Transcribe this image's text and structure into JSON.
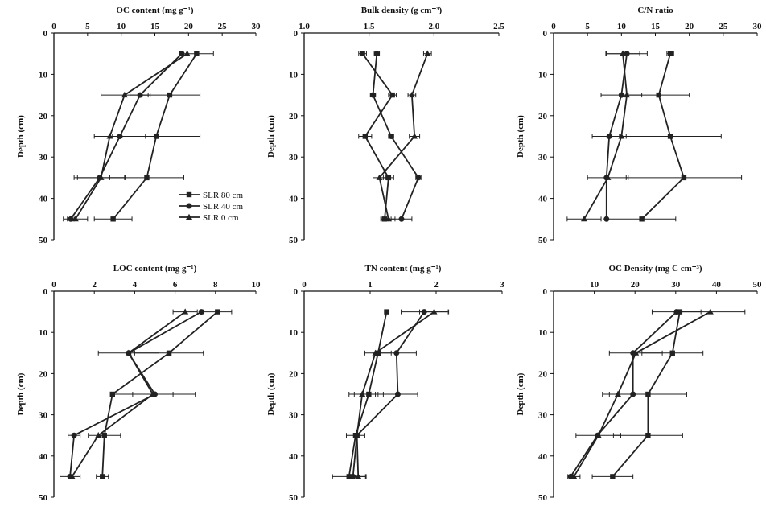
{
  "legend": [
    {
      "series": "SLR 80 cm",
      "marker": "square"
    },
    {
      "series": "SLR 40 cm",
      "marker": "circle"
    },
    {
      "series": "SLR 0 cm",
      "marker": "triangle"
    }
  ],
  "chart_data": [
    {
      "type": "line",
      "title": "OC content (mg g⁻¹)",
      "ylabel": "Depth (cm)",
      "xlim": [
        0,
        30
      ],
      "xticks": [
        0,
        5,
        10,
        15,
        20,
        25,
        30
      ],
      "xtick_labels": [
        "0",
        "5",
        "10",
        "15",
        "20",
        "25",
        "30"
      ],
      "ylim": [
        0,
        50
      ],
      "yticks": [
        0,
        10,
        20,
        30,
        40,
        50
      ],
      "ytick_labels": [
        "0",
        "10",
        "20",
        "30",
        "40",
        "50"
      ],
      "y": [
        5,
        15,
        25,
        35,
        45
      ],
      "series": [
        {
          "name": "SLR 80 cm",
          "marker": "square",
          "x": [
            21.2,
            17.2,
            15.2,
            13.8,
            8.8
          ],
          "err": [
            2.5,
            4.5,
            6.5,
            5.5,
            2.8
          ]
        },
        {
          "name": "SLR 40 cm",
          "marker": "circle",
          "x": [
            19.0,
            12.8,
            9.8,
            6.8,
            2.5
          ],
          "err": [
            0,
            1.5,
            3.8,
            3.8,
            0.5
          ]
        },
        {
          "name": "SLR 0 cm",
          "marker": "triangle",
          "x": [
            19.8,
            10.5,
            8.3,
            7.0,
            3.2
          ],
          "err": [
            0,
            3.5,
            0,
            3.5,
            1.8
          ]
        }
      ]
    },
    {
      "type": "line",
      "title": "Bulk density (g cm⁻³)",
      "ylabel": "Depth (cm)",
      "xlim": [
        1.0,
        2.5
      ],
      "xticks": [
        1.0,
        1.5,
        2.0,
        2.5
      ],
      "xtick_labels": [
        "1.0",
        "1.5",
        "2.0",
        "2.5"
      ],
      "ylim": [
        0,
        50
      ],
      "yticks": [
        0,
        10,
        20,
        30,
        40,
        50
      ],
      "ytick_labels": [
        "0",
        "10",
        "20",
        "30",
        "40",
        "50"
      ],
      "y": [
        5,
        15,
        25,
        35,
        45
      ],
      "series": [
        {
          "name": "SLR 80 cm",
          "marker": "square",
          "x": [
            1.45,
            1.68,
            1.47,
            1.65,
            1.62
          ],
          "err": [
            0.03,
            0.03,
            0.05,
            0.04,
            0.03
          ]
        },
        {
          "name": "SLR 40 cm",
          "marker": "circle",
          "x": [
            1.56,
            1.53,
            1.67,
            1.88,
            1.75
          ],
          "err": [
            0.02,
            0.02,
            0.02,
            0.02,
            0.08
          ]
        },
        {
          "name": "SLR 0 cm",
          "marker": "triangle",
          "x": [
            1.95,
            1.83,
            1.85,
            1.58,
            1.65
          ],
          "err": [
            0.03,
            0.03,
            0.04,
            0.05,
            0.05
          ]
        }
      ]
    },
    {
      "type": "line",
      "title": "C/N ratio",
      "ylabel": "Depth (cm)",
      "xlim": [
        0,
        30
      ],
      "xticks": [
        0,
        5,
        10,
        15,
        20,
        25,
        30
      ],
      "xtick_labels": [
        "0",
        "5",
        "10",
        "15",
        "20",
        "25",
        "30"
      ],
      "ylim": [
        0,
        50
      ],
      "yticks": [
        0,
        10,
        20,
        30,
        40,
        50
      ],
      "ytick_labels": [
        "0",
        "10",
        "20",
        "30",
        "40",
        "50"
      ],
      "y": [
        5,
        15,
        25,
        35,
        45
      ],
      "series": [
        {
          "name": "SLR 80 cm",
          "marker": "square",
          "x": [
            17.2,
            15.5,
            17.2,
            19.2,
            13.0
          ],
          "err": [
            0.5,
            4.5,
            7.5,
            8.5,
            5.0
          ]
        },
        {
          "name": "SLR 40 cm",
          "marker": "circle",
          "x": [
            10.8,
            10.0,
            8.2,
            7.8,
            7.8
          ],
          "err": [
            3.0,
            3.0,
            2.5,
            0,
            0
          ]
        },
        {
          "name": "SLR 0 cm",
          "marker": "triangle",
          "x": [
            10.2,
            10.8,
            10.0,
            8.0,
            4.5
          ],
          "err": [
            2.5,
            0,
            0,
            3.0,
            2.5
          ]
        }
      ]
    },
    {
      "type": "line",
      "title": "LOC content (mg g⁻¹)",
      "ylabel": "Depth (cm)",
      "xlim": [
        0,
        10
      ],
      "xticks": [
        0,
        2,
        4,
        6,
        8,
        10
      ],
      "xtick_labels": [
        "0",
        "2",
        "4",
        "6",
        "8",
        "10"
      ],
      "ylim": [
        0,
        50
      ],
      "yticks": [
        0,
        10,
        20,
        30,
        40,
        50
      ],
      "ytick_labels": [
        "0",
        "10",
        "20",
        "30",
        "40",
        "50"
      ],
      "y": [
        5,
        15,
        25,
        35,
        45
      ],
      "series": [
        {
          "name": "SLR 80 cm",
          "marker": "square",
          "x": [
            8.1,
            5.7,
            2.9,
            2.5,
            2.4
          ],
          "err": [
            0.7,
            1.7,
            0,
            0.8,
            0.3
          ]
        },
        {
          "name": "SLR 40 cm",
          "marker": "circle",
          "x": [
            7.3,
            3.7,
            5.0,
            1.0,
            0.8
          ],
          "err": [
            0,
            1.5,
            2.0,
            0.3,
            0.5
          ]
        },
        {
          "name": "SLR 0 cm",
          "marker": "triangle",
          "x": [
            6.5,
            3.7,
            4.9,
            2.2,
            0.9
          ],
          "err": [
            0.6,
            0,
            1.0,
            0,
            0
          ]
        }
      ]
    },
    {
      "type": "line",
      "title": "TN content (mg g⁻¹)",
      "ylabel": "Depth (cm)",
      "xlim": [
        0,
        3
      ],
      "xticks": [
        0,
        1,
        2,
        3
      ],
      "xtick_labels": [
        "0",
        "1",
        "2",
        "3"
      ],
      "ylim": [
        0,
        50
      ],
      "yticks": [
        0,
        10,
        20,
        30,
        40,
        50
      ],
      "ytick_labels": [
        "0",
        "10",
        "20",
        "30",
        "40",
        "50"
      ],
      "y": [
        5,
        15,
        25,
        35,
        45
      ],
      "series": [
        {
          "name": "SLR 80 cm",
          "marker": "square",
          "x": [
            1.25,
            1.12,
            0.98,
            0.78,
            0.68
          ],
          "err": [
            0.03,
            0.2,
            0.22,
            0.14,
            0.25
          ]
        },
        {
          "name": "SLR 40 cm",
          "marker": "circle",
          "x": [
            1.82,
            1.4,
            1.42,
            0.8,
            0.74
          ],
          "err": [
            0.35,
            0.3,
            0.3,
            0,
            0
          ]
        },
        {
          "name": "SLR 0 cm",
          "marker": "triangle",
          "x": [
            1.97,
            1.08,
            0.88,
            0.8,
            0.82
          ],
          "err": [
            0.22,
            0,
            0.2,
            0,
            0.12
          ]
        }
      ]
    },
    {
      "type": "line",
      "title": "OC Density (mg C cm⁻³)",
      "ylabel": "Depth (cm)",
      "xlim": [
        0,
        50
      ],
      "xticks": [
        10,
        20,
        30,
        40,
        50
      ],
      "xtick_labels": [
        "10",
        "20",
        "30",
        "40",
        "50"
      ],
      "ylim": [
        0,
        50
      ],
      "yticks": [
        0,
        10,
        20,
        30,
        40,
        50
      ],
      "ytick_labels": [
        "0",
        "10",
        "20",
        "30",
        "40",
        "50"
      ],
      "y": [
        5,
        15,
        25,
        35,
        45
      ],
      "series": [
        {
          "name": "SLR 80 cm",
          "marker": "square",
          "x": [
            31.0,
            29.2,
            23.2,
            23.2,
            14.5
          ],
          "err": [
            0,
            7.5,
            9.5,
            8.5,
            5.0
          ]
        },
        {
          "name": "SLR 40 cm",
          "marker": "circle",
          "x": [
            30.2,
            19.5,
            19.5,
            10.8,
            4.2
          ],
          "err": [
            6.0,
            0,
            0,
            0,
            0
          ]
        },
        {
          "name": "SLR 0 cm",
          "marker": "triangle",
          "x": [
            38.5,
            20.2,
            15.8,
            11.0,
            5.0
          ],
          "err": [
            8.5,
            6.5,
            3.8,
            5.5,
            1.5
          ]
        }
      ]
    }
  ]
}
